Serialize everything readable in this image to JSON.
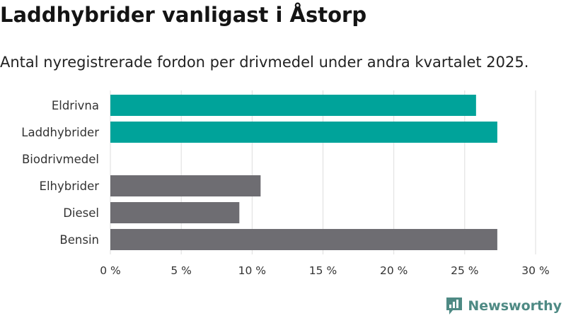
{
  "title": "Laddhybrider vanligast i Åstorp",
  "subtitle": "Antal nyregistrerade fordon per drivmedel under andra kvartalet 2025.",
  "brand": {
    "name": "Newsworthy",
    "icon": "newsworthy-logo-icon"
  },
  "colors": {
    "highlight": "#00a39a",
    "default": "#6e6d72",
    "grid": "#dddddd",
    "brand": "#4e8a84"
  },
  "chart_data": {
    "type": "bar",
    "orientation": "horizontal",
    "title": "Laddhybrider vanligast i Åstorp",
    "subtitle": "Antal nyregistrerade fordon per drivmedel under andra kvartalet 2025.",
    "xlabel": "",
    "ylabel": "",
    "xlim": [
      0,
      30
    ],
    "xticks": [
      0,
      5,
      10,
      15,
      20,
      25,
      30
    ],
    "xtick_labels": [
      "0 %",
      "5 %",
      "10 %",
      "15 %",
      "20 %",
      "25 %",
      "30 %"
    ],
    "grid": "vertical",
    "categories": [
      "Eldrivna",
      "Laddhybrider",
      "Biodrivmedel",
      "Elhybrider",
      "Diesel",
      "Bensin"
    ],
    "values": [
      25.8,
      27.3,
      0,
      10.6,
      9.1,
      27.3
    ],
    "bar_colors": [
      "#00a39a",
      "#00a39a",
      "#6e6d72",
      "#6e6d72",
      "#6e6d72",
      "#6e6d72"
    ]
  }
}
